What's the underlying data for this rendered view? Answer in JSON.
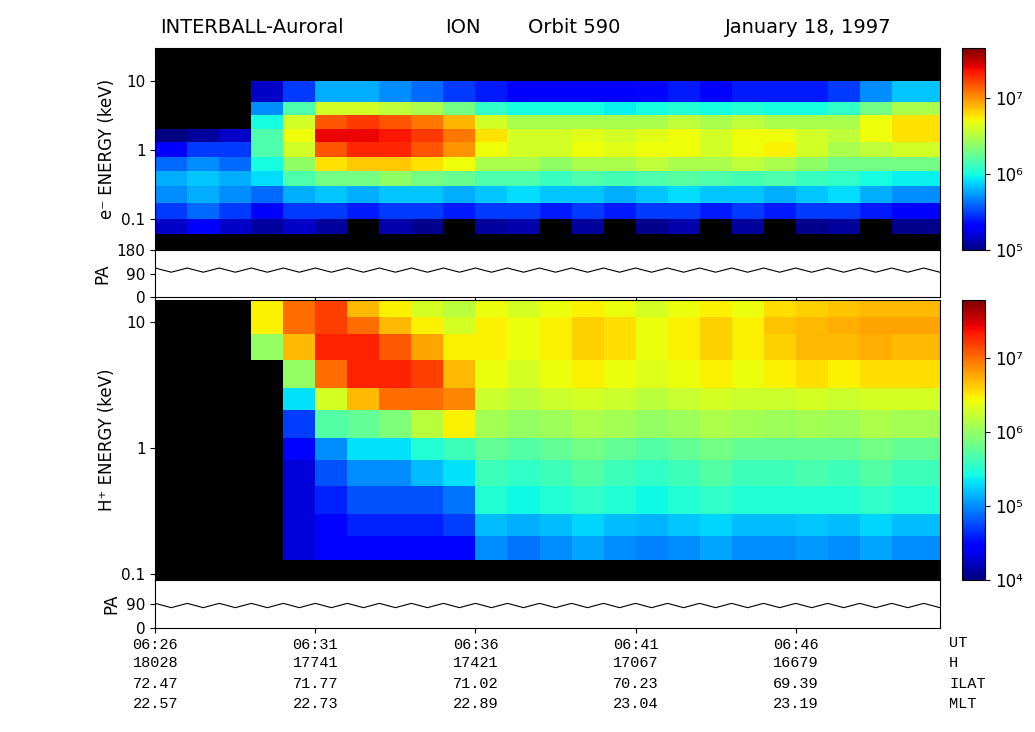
{
  "header": {
    "spacecraft": "INTERBALL-Auroral",
    "instrument": "ION",
    "orbit": "Orbit 590",
    "date": "January 18, 1997"
  },
  "time_axis": {
    "name": "UT",
    "xlim": [
      386,
      410.5
    ],
    "xticks": [
      {
        "value": 386,
        "label": "06:26"
      },
      {
        "value": 391,
        "label": "06:31"
      },
      {
        "value": 396,
        "label": "06:36"
      },
      {
        "value": 401,
        "label": "06:41"
      },
      {
        "value": 406,
        "label": "06:46"
      }
    ],
    "rows": [
      {
        "name": "H",
        "values": [
          18028,
          17741,
          17421,
          17067,
          16679
        ]
      },
      {
        "name": "ILAT",
        "values": [
          72.47,
          71.77,
          71.02,
          70.23,
          69.39
        ]
      },
      {
        "name": "MLT",
        "values": [
          22.57,
          22.73,
          22.89,
          23.04,
          23.19
        ]
      }
    ]
  },
  "chart_data": [
    {
      "type": "heatmap",
      "ylabel": "e⁻ ENERGY (keV)",
      "log": "y",
      "tick_labels": "y",
      "ylim": [
        0.035,
        30
      ],
      "yticks": [
        0.1,
        1,
        10
      ],
      "x_edges": [
        386,
        387,
        388,
        389,
        390,
        391,
        392,
        393,
        394,
        395,
        396,
        397,
        398,
        399,
        400,
        401,
        402,
        403,
        404,
        405,
        406,
        407,
        408,
        409,
        410.5
      ],
      "y_edges": [
        0.035,
        0.06,
        0.1,
        0.17,
        0.3,
        0.5,
        0.8,
        1.3,
        2,
        3.2,
        5,
        10,
        31
      ],
      "cells": [
        [
          60000.0,
          60000.0,
          60000.0,
          60000.0,
          70000.0,
          80000.0,
          60000.0,
          80000.0,
          70000.0,
          60000.0,
          70000.0,
          80000.0,
          60000.0,
          70000.0,
          60000.0,
          80000.0,
          70000.0,
          60000.0,
          70000.0,
          80000.0,
          60000.0,
          70000.0,
          80000.0,
          70000.0
        ],
        [
          150000.0,
          200000.0,
          150000.0,
          120000.0,
          150000.0,
          120000.0,
          90000.0,
          130000.0,
          110000.0,
          90000.0,
          120000.0,
          130000.0,
          90000.0,
          120000.0,
          80000.0,
          110000.0,
          130000.0,
          90000.0,
          120000.0,
          80000.0,
          110000.0,
          120000.0,
          90000.0,
          110000.0
        ],
        [
          300000.0,
          400000.0,
          300000.0,
          200000.0,
          300000.0,
          300000.0,
          250000.0,
          300000.0,
          300000.0,
          250000.0,
          300000.0,
          300000.0,
          250000.0,
          300000.0,
          250000.0,
          300000.0,
          300000.0,
          250000.0,
          300000.0,
          250000.0,
          300000.0,
          300000.0,
          250000.0,
          200000.0
        ],
        [
          500000.0,
          600000.0,
          500000.0,
          400000.0,
          600000.0,
          700000.0,
          600000.0,
          700000.0,
          700000.0,
          600000.0,
          700000.0,
          800000.0,
          700000.0,
          700000.0,
          600000.0,
          700000.0,
          800000.0,
          700000.0,
          700000.0,
          600000.0,
          700000.0,
          800000.0,
          600000.0,
          500000.0
        ],
        [
          600000.0,
          700000.0,
          600000.0,
          800000.0,
          1500000.0,
          2000000.0,
          2000000.0,
          2500000.0,
          2000000.0,
          1800000.0,
          1500000.0,
          1500000.0,
          1300000.0,
          1500000.0,
          1400000.0,
          1500000.0,
          1600000.0,
          1500000.0,
          1400000.0,
          1500000.0,
          1300000.0,
          1200000.0,
          1000000.0,
          900000.0
        ],
        [
          400000.0,
          500000.0,
          400000.0,
          1000000.0,
          2500000.0,
          6000000.0,
          7000000.0,
          7000000.0,
          6000000.0,
          5000000.0,
          3000000.0,
          3000000.0,
          2500000.0,
          3000000.0,
          3000000.0,
          3500000.0,
          3000000.0,
          3000000.0,
          3500000.0,
          3000000.0,
          2500000.0,
          2000000.0,
          2000000.0,
          2000000.0
        ],
        [
          200000.0,
          300000.0,
          300000.0,
          1500000.0,
          4000000.0,
          15000000.0,
          20000000.0,
          20000000.0,
          15000000.0,
          10000000.0,
          5000000.0,
          4000000.0,
          4000000.0,
          5000000.0,
          4500000.0,
          5000000.0,
          5000000.0,
          4000000.0,
          5000000.0,
          5500000.0,
          4000000.0,
          3000000.0,
          3500000.0,
          4000000.0
        ],
        [
          100000.0,
          120000.0,
          150000.0,
          1500000.0,
          5000000.0,
          25000000.0,
          25000000.0,
          22000000.0,
          18000000.0,
          12000000.0,
          6000000.0,
          4000000.0,
          4000000.0,
          4500000.0,
          4000000.0,
          4500000.0,
          5000000.0,
          4000000.0,
          5000000.0,
          5000000.0,
          4000000.0,
          3500000.0,
          5000000.0,
          6000000.0
        ],
        [
          70000.0,
          80000.0,
          90000.0,
          1000000.0,
          4000000.0,
          15000000.0,
          18000000.0,
          15000000.0,
          12000000.0,
          8000000.0,
          4000000.0,
          3000000.0,
          3000000.0,
          3000000.0,
          3000000.0,
          3000000.0,
          3500000.0,
          3000000.0,
          3500000.0,
          3000000.0,
          3000000.0,
          3000000.0,
          5000000.0,
          6000000.0
        ],
        [
          50000.0,
          50000.0,
          60000.0,
          500000.0,
          1500000.0,
          4000000.0,
          4000000.0,
          3500000.0,
          3000000.0,
          2000000.0,
          1200000.0,
          1000000.0,
          1000000.0,
          1000000.0,
          900000.0,
          1000000.0,
          1100000.0,
          1000000.0,
          1100000.0,
          1000000.0,
          1000000.0,
          1200000.0,
          2000000.0,
          3000000.0
        ],
        [
          40000.0,
          40000.0,
          50000.0,
          150000.0,
          300000.0,
          600000.0,
          600000.0,
          500000.0,
          400000.0,
          300000.0,
          250000.0,
          200000.0,
          200000.0,
          200000.0,
          200000.0,
          220000.0,
          250000.0,
          200000.0,
          250000.0,
          250000.0,
          250000.0,
          300000.0,
          500000.0,
          700000.0
        ],
        [
          50000.0,
          50000.0,
          50000.0,
          50000.0,
          50000.0,
          50000.0,
          50000.0,
          50000.0,
          50000.0,
          50000.0,
          50000.0,
          50000.0,
          50000.0,
          50000.0,
          50000.0,
          50000.0,
          50000.0,
          50000.0,
          50000.0,
          50000.0,
          50000.0,
          60000.0,
          70000.0,
          80000.0
        ]
      ],
      "colorbar": {
        "range": [
          100000.0,
          45000000.0
        ],
        "ticks": [
          {
            "value": 100000,
            "label": "10⁵"
          },
          {
            "value": 1000000,
            "label": "10⁶"
          },
          {
            "value": 10000000,
            "label": "10⁷"
          }
        ]
      }
    },
    {
      "type": "line",
      "ylabel": "PA",
      "tick_labels": "y",
      "color": "#000000",
      "ylim": [
        0,
        180
      ],
      "yticks": [
        0,
        90,
        180
      ],
      "x": [
        386,
        386.5,
        387,
        387.5,
        388,
        388.5,
        389,
        389.5,
        390,
        390.5,
        391,
        391.5,
        392,
        392.5,
        393,
        393.5,
        394,
        394.5,
        395,
        395.5,
        396,
        396.5,
        397,
        397.5,
        398,
        398.5,
        399,
        399.5,
        400,
        400.5,
        401,
        401.5,
        402,
        402.5,
        403,
        403.5,
        404,
        404.5,
        405,
        405.5,
        406,
        406.5,
        407,
        407.5,
        408,
        408.5,
        409,
        409.5,
        410,
        410.5
      ],
      "values": [
        112,
        96,
        112,
        96,
        112,
        96,
        112,
        96,
        112,
        96,
        112,
        96,
        112,
        96,
        112,
        96,
        112,
        96,
        112,
        96,
        112,
        96,
        112,
        96,
        112,
        96,
        112,
        96,
        112,
        96,
        112,
        96,
        112,
        96,
        112,
        96,
        112,
        96,
        112,
        96,
        112,
        96,
        112,
        96,
        112,
        96,
        112,
        96,
        112,
        96
      ]
    },
    {
      "type": "heatmap",
      "ylabel": "H⁺ ENERGY (keV)",
      "log": "y",
      "tick_labels": "y",
      "ylim": [
        0.09,
        15
      ],
      "yticks": [
        0.1,
        1,
        10
      ],
      "x_edges": [
        386,
        387,
        388,
        389,
        390,
        391,
        392,
        393,
        394,
        395,
        396,
        397,
        398,
        399,
        400,
        401,
        402,
        403,
        404,
        405,
        406,
        407,
        408,
        409,
        410.5
      ],
      "y_edges": [
        0.09,
        0.13,
        0.2,
        0.3,
        0.5,
        0.8,
        1.2,
        2,
        3,
        5,
        8,
        11,
        15
      ],
      "cells": [
        [
          5000.0,
          5000.0,
          5000.0,
          5000.0,
          5000.0,
          8000.0,
          8000.0,
          8000.0,
          8000.0,
          8000.0,
          5000.0,
          5000.0,
          5000.0,
          5000.0,
          5000.0,
          5000.0,
          5000.0,
          5000.0,
          5000.0,
          5000.0,
          5000.0,
          5000.0,
          5000.0,
          5000.0
        ],
        [
          5000.0,
          5000.0,
          5000.0,
          5000.0,
          20000.0,
          30000.0,
          30000.0,
          30000.0,
          30000.0,
          30000.0,
          100000.0,
          80000.0,
          100000.0,
          120000.0,
          100000.0,
          90000.0,
          100000.0,
          120000.0,
          100000.0,
          100000.0,
          110000.0,
          100000.0,
          120000.0,
          100000.0
        ],
        [
          5000.0,
          5000.0,
          5000.0,
          5000.0,
          20000.0,
          30000.0,
          40000.0,
          40000.0,
          40000.0,
          50000.0,
          150000.0,
          130000.0,
          150000.0,
          180000.0,
          150000.0,
          140000.0,
          160000.0,
          180000.0,
          150000.0,
          150000.0,
          160000.0,
          150000.0,
          180000.0,
          150000.0
        ],
        [
          5000.0,
          5000.0,
          5000.0,
          5000.0,
          20000.0,
          40000.0,
          60000.0,
          60000.0,
          60000.0,
          80000.0,
          300000.0,
          250000.0,
          300000.0,
          350000.0,
          300000.0,
          250000.0,
          300000.0,
          350000.0,
          300000.0,
          300000.0,
          300000.0,
          300000.0,
          350000.0,
          300000.0
        ],
        [
          5000.0,
          5000.0,
          5000.0,
          5000.0,
          20000.0,
          60000.0,
          100000.0,
          100000.0,
          150000.0,
          200000.0,
          400000.0,
          350000.0,
          400000.0,
          500000.0,
          400000.0,
          350000.0,
          400000.0,
          500000.0,
          400000.0,
          400000.0,
          450000.0,
          400000.0,
          500000.0,
          400000.0
        ],
        [
          5000.0,
          5000.0,
          5000.0,
          5000.0,
          30000.0,
          100000.0,
          200000.0,
          200000.0,
          300000.0,
          400000.0,
          600000.0,
          500000.0,
          600000.0,
          700000.0,
          600000.0,
          500000.0,
          600000.0,
          700000.0,
          600000.0,
          600000.0,
          600000.0,
          600000.0,
          700000.0,
          600000.0
        ],
        [
          5000.0,
          5000.0,
          5000.0,
          5000.0,
          50000.0,
          500000.0,
          600000.0,
          800000.0,
          1500000.0,
          3000000.0,
          1200000.0,
          1000000.0,
          1100000.0,
          1300000.0,
          1200000.0,
          1000000.0,
          1100000.0,
          1300000.0,
          1200000.0,
          1100000.0,
          1200000.0,
          1100000.0,
          1300000.0,
          1200000.0
        ],
        [
          5000.0,
          5000.0,
          5000.0,
          5000.0,
          200000.0,
          2000000.0,
          5000000.0,
          10000000.0,
          10000000.0,
          8000000.0,
          1800000.0,
          1500000.0,
          1800000.0,
          2000000.0,
          1800000.0,
          1500000.0,
          1700000.0,
          2000000.0,
          1800000.0,
          1800000.0,
          2000000.0,
          1800000.0,
          2000000.0,
          2000000.0
        ],
        [
          5000.0,
          5000.0,
          5000.0,
          5000.0,
          1000000.0,
          10000000.0,
          20000000.0,
          20000000.0,
          15000000.0,
          5000000.0,
          2500000.0,
          2000000.0,
          2500000.0,
          3000000.0,
          2500000.0,
          2200000.0,
          2500000.0,
          3000000.0,
          2500000.0,
          3000000.0,
          3500000.0,
          3000000.0,
          3500000.0,
          3500000.0
        ],
        [
          5000.0,
          5000.0,
          5000.0,
          1000000.0,
          5000000.0,
          20000000.0,
          20000000.0,
          12000000.0,
          6000000.0,
          3000000.0,
          3000000.0,
          2500000.0,
          3000000.0,
          4000000.0,
          3500000.0,
          2500000.0,
          3000000.0,
          4000000.0,
          3000000.0,
          4000000.0,
          5000000.0,
          5000000.0,
          5500000.0,
          5000000.0
        ],
        [
          5000.0,
          5000.0,
          5000.0,
          3000000.0,
          10000000.0,
          15000000.0,
          10000000.0,
          5000000.0,
          3000000.0,
          2000000.0,
          3000000.0,
          2500000.0,
          3000000.0,
          4000000.0,
          3500000.0,
          2500000.0,
          3000000.0,
          4000000.0,
          3000000.0,
          4500000.0,
          5000000.0,
          5500000.0,
          6000000.0,
          6000000.0
        ],
        [
          5000.0,
          5000.0,
          5000.0,
          3000000.0,
          10000000.0,
          15000000.0,
          5000000.0,
          3000000.0,
          2000000.0,
          1500000.0,
          2500000.0,
          2000000.0,
          2500000.0,
          3000000.0,
          2500000.0,
          2000000.0,
          2500000.0,
          3000000.0,
          2500000.0,
          3500000.0,
          4000000.0,
          4500000.0,
          5000000.0,
          5000000.0
        ]
      ],
      "colorbar": {
        "range": [
          10000.0,
          60000000.0
        ],
        "ticks": [
          {
            "value": 10000,
            "label": "10⁴"
          },
          {
            "value": 100000,
            "label": "10⁵"
          },
          {
            "value": 1000000,
            "label": "10⁶"
          },
          {
            "value": 10000000,
            "label": "10⁷"
          }
        ]
      }
    },
    {
      "type": "line",
      "ylabel": "PA",
      "tick_labels": true,
      "color": "#000000",
      "ylim": [
        0,
        180
      ],
      "yticks": [
        0,
        90
      ],
      "x": [
        386,
        386.5,
        387,
        387.5,
        388,
        388.5,
        389,
        389.5,
        390,
        390.5,
        391,
        391.5,
        392,
        392.5,
        393,
        393.5,
        394,
        394.5,
        395,
        395.5,
        396,
        396.5,
        397,
        397.5,
        398,
        398.5,
        399,
        399.5,
        400,
        400.5,
        401,
        401.5,
        402,
        402.5,
        403,
        403.5,
        404,
        404.5,
        405,
        405.5,
        406,
        406.5,
        407,
        407.5,
        408,
        408.5,
        409,
        409.5,
        410,
        410.5
      ],
      "values": [
        92,
        76,
        92,
        76,
        92,
        76,
        92,
        76,
        92,
        76,
        92,
        76,
        92,
        76,
        92,
        76,
        92,
        76,
        92,
        76,
        92,
        76,
        92,
        76,
        92,
        76,
        92,
        76,
        92,
        76,
        92,
        76,
        92,
        76,
        92,
        76,
        92,
        76,
        92,
        76,
        92,
        76,
        92,
        76,
        92,
        76,
        92,
        76,
        92,
        76
      ]
    }
  ]
}
